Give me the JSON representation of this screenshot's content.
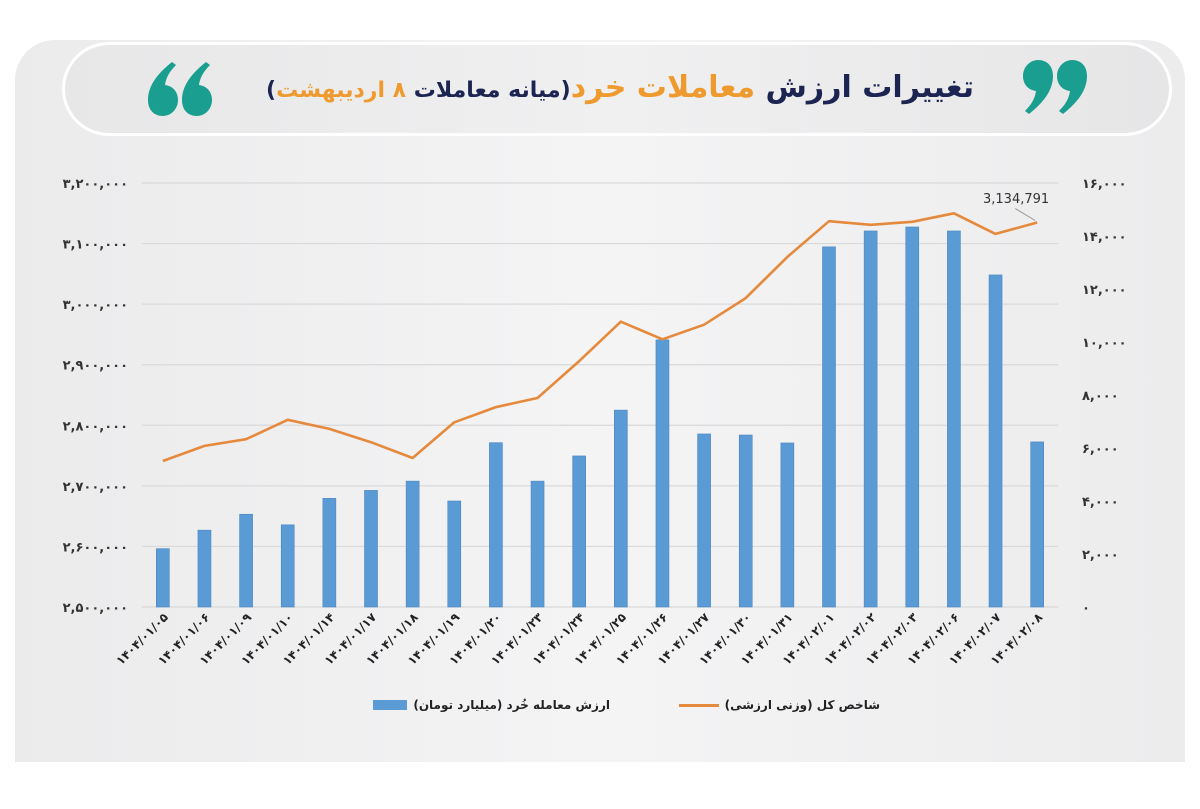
{
  "header": {
    "title_part1": "تغییرات ارزش ",
    "title_part2": "معاملات خرد",
    "title_part3": "(میانه معاملات ",
    "title_part4": "۸ اردیبهشت",
    "title_part5": ")",
    "left_icon": "open-quote-icon",
    "right_icon": "close-quote-icon",
    "accent_color": "#ef9a2e",
    "dark_color": "#1c2451",
    "quote_color": "#1a9e8f"
  },
  "legend": {
    "line_label": "شاخص کل (وزنی ارزشی)",
    "bar_label": "ارزش معامله خُرد (میلیارد تومان)"
  },
  "annotation": {
    "label": "3,134,791"
  },
  "chart_data": {
    "type": "bar+line",
    "title": "تغییرات ارزش معاملات خرد (میانه معاملات ۸ اردیبهشت)",
    "categories": [
      "۱۴۰۴/۰۱/۰۵",
      "۱۴۰۴/۰۱/۰۶",
      "۱۴۰۴/۰۱/۰۹",
      "۱۴۰۴/۰۱/۱۰",
      "۱۴۰۴/۰۱/۱۴",
      "۱۴۰۴/۰۱/۱۷",
      "۱۴۰۴/۰۱/۱۸",
      "۱۴۰۴/۰۱/۱۹",
      "۱۴۰۴/۰۱/۲۰",
      "۱۴۰۴/۰۱/۲۳",
      "۱۴۰۴/۰۱/۲۴",
      "۱۴۰۴/۰۱/۲۵",
      "۱۴۰۴/۰۱/۲۶",
      "۱۴۰۴/۰۱/۲۷",
      "۱۴۰۴/۰۱/۳۰",
      "۱۴۰۴/۰۱/۳۱",
      "۱۴۰۴/۰۲/۰۱",
      "۱۴۰۴/۰۲/۰۲",
      "۱۴۰۴/۰۲/۰۳",
      "۱۴۰۴/۰۲/۰۶",
      "۱۴۰۴/۰۲/۰۷",
      "۱۴۰۴/۰۲/۰۸"
    ],
    "series": [
      {
        "name": "ارزش معامله خُرد (میلیارد تومان)",
        "type": "bar",
        "axis": "right",
        "color": "#5b9bd5",
        "values": [
          2200,
          2900,
          3500,
          3100,
          4100,
          4400,
          4750,
          4000,
          6200,
          4750,
          5700,
          7430,
          10080,
          6530,
          6490,
          6190,
          13590,
          14190,
          14340,
          14190,
          12530,
          6230
        ]
      },
      {
        "name": "شاخص کل (وزنی ارزشی)",
        "type": "line",
        "axis": "left",
        "color": "#e58a3c",
        "values": [
          2741000,
          2766000,
          2777000,
          2809000,
          2794000,
          2772000,
          2746000,
          2805000,
          2830000,
          2845000,
          2906000,
          2971000,
          2942000,
          2966000,
          3010000,
          3078000,
          3137000,
          3131000,
          3136000,
          3150000,
          3116000,
          3134791
        ]
      }
    ],
    "y_left": {
      "ylim": [
        2500000,
        3200000
      ],
      "ticks": [
        "۲,۵۰۰,۰۰۰",
        "۲,۶۰۰,۰۰۰",
        "۲,۷۰۰,۰۰۰",
        "۲,۸۰۰,۰۰۰",
        "۲,۹۰۰,۰۰۰",
        "۳,۰۰۰,۰۰۰",
        "۳,۱۰۰,۰۰۰",
        "۳,۲۰۰,۰۰۰"
      ]
    },
    "y_right": {
      "ylim": [
        0,
        16000
      ],
      "ticks": [
        "۰",
        "۲,۰۰۰",
        "۴,۰۰۰",
        "۶,۰۰۰",
        "۸,۰۰۰",
        "۱۰,۰۰۰",
        "۱۲,۰۰۰",
        "۱۴,۰۰۰",
        "۱۶,۰۰۰"
      ]
    },
    "annotations": [
      {
        "point_index": 21,
        "series": "line",
        "text": "3,134,791"
      }
    ],
    "grid": true,
    "legend_position": "bottom"
  }
}
